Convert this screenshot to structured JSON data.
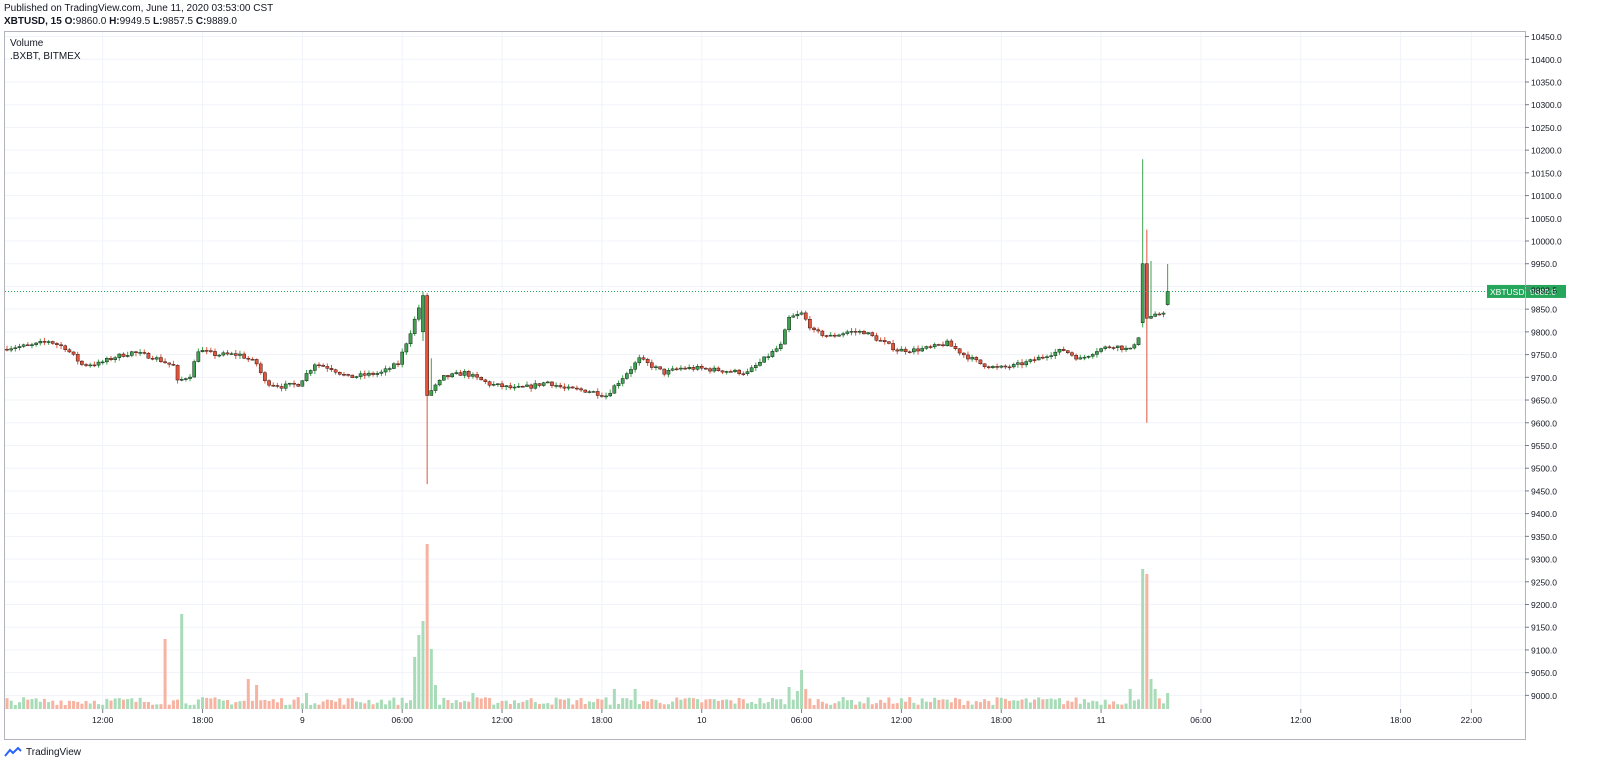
{
  "header": {
    "published": "Published on TradingView.com, June 11, 2020 03:53:00 CST",
    "symbol": "XBTUSD, 15",
    "ohlc": [
      {
        "k": "O:",
        "v": "9860.0"
      },
      {
        "k": "H:",
        "v": "9949.5"
      },
      {
        "k": "L:",
        "v": "9857.5"
      },
      {
        "k": "C:",
        "v": "9889.0"
      }
    ]
  },
  "legend": {
    "line1": "Volume",
    "line2": ".BXBT, BITMEX"
  },
  "footer": {
    "brand": "TradingView"
  },
  "colors": {
    "up": "#26a69a",
    "down": "#ef5350",
    "up_fill": "#3da24f",
    "down_fill": "#e2543b",
    "up_volume": "#a8dbb8",
    "down_volume": "#f6b3a2",
    "price_line": "#26a65b",
    "grid": "#f0f3fa",
    "axis_text": "#131722"
  },
  "chart_data": {
    "type": "candlestick",
    "symbol": "XBTUSD",
    "interval": "15",
    "price_axis": {
      "ylim": [
        8970,
        10460
      ],
      "ticks": [
        9000,
        9050,
        9100,
        9150,
        9200,
        9250,
        9300,
        9350,
        9400,
        9450,
        9500,
        9550,
        9600,
        9650,
        9700,
        9750,
        9800,
        9850,
        9900,
        9950,
        10000,
        10050,
        10100,
        10150,
        10200,
        10250,
        10300,
        10350,
        10400,
        10450
      ],
      "tick_labels": [
        "9000.0",
        "9050.0",
        "9100.0",
        "9150.0",
        "9200.0",
        "9250.0",
        "9300.0",
        "9350.0",
        "9400.0",
        "9450.0",
        "9500.0",
        "9550.0",
        "9600.0",
        "9650.0",
        "9700.0",
        "9750.0",
        "9800.0",
        "9850.0",
        "",
        "9950.0",
        "10000.0",
        "10050.0",
        "10100.0",
        "10150.0",
        "10200.0",
        "10250.0",
        "10300.0",
        "10350.0",
        "10400.0",
        "10450.0"
      ],
      "extra_labels": [
        {
          "value": 9892.5,
          "label": "9892.5"
        }
      ]
    },
    "time_axis": {
      "bars_total": 324,
      "labels": [
        {
          "bar": 23,
          "label": "12:00"
        },
        {
          "bar": 47,
          "label": "18:00"
        },
        {
          "bar": 71,
          "label": "9"
        },
        {
          "bar": 95,
          "label": "06:00"
        },
        {
          "bar": 119,
          "label": "12:00"
        },
        {
          "bar": 143,
          "label": "18:00"
        },
        {
          "bar": 167,
          "label": "10"
        },
        {
          "bar": 191,
          "label": "06:00"
        },
        {
          "bar": 215,
          "label": "12:00"
        },
        {
          "bar": 239,
          "label": "18:00"
        },
        {
          "bar": 263,
          "label": "11"
        },
        {
          "bar": 287,
          "label": "06:00"
        },
        {
          "bar": 311,
          "label": "12:00"
        },
        {
          "bar": 335,
          "label": "18:00"
        },
        {
          "bar": 352,
          "label": "22:00"
        }
      ]
    },
    "last_price": {
      "label": "XBTUSD",
      "value": 9889.0,
      "value_label": "9889.0"
    },
    "keypoints": [
      [
        0,
        9765
      ],
      [
        6,
        9770
      ],
      [
        10,
        9780
      ],
      [
        14,
        9765
      ],
      [
        18,
        9728
      ],
      [
        22,
        9730
      ],
      [
        26,
        9745
      ],
      [
        30,
        9755
      ],
      [
        35,
        9745
      ],
      [
        40,
        9725
      ],
      [
        41,
        9690
      ],
      [
        44,
        9705
      ],
      [
        46,
        9760
      ],
      [
        50,
        9750
      ],
      [
        56,
        9750
      ],
      [
        60,
        9730
      ],
      [
        62,
        9690
      ],
      [
        66,
        9680
      ],
      [
        70,
        9685
      ],
      [
        74,
        9730
      ],
      [
        78,
        9720
      ],
      [
        82,
        9700
      ],
      [
        86,
        9705
      ],
      [
        90,
        9710
      ],
      [
        94,
        9730
      ],
      [
        97,
        9800
      ],
      [
        100,
        9880
      ],
      [
        101,
        9740
      ],
      [
        102,
        9670
      ],
      [
        105,
        9700
      ],
      [
        110,
        9710
      ],
      [
        116,
        9685
      ],
      [
        122,
        9675
      ],
      [
        126,
        9680
      ],
      [
        130,
        9690
      ],
      [
        134,
        9675
      ],
      [
        140,
        9670
      ],
      [
        144,
        9660
      ],
      [
        148,
        9700
      ],
      [
        152,
        9740
      ],
      [
        158,
        9710
      ],
      [
        162,
        9720
      ],
      [
        166,
        9720
      ],
      [
        172,
        9715
      ],
      [
        178,
        9710
      ],
      [
        182,
        9740
      ],
      [
        186,
        9770
      ],
      [
        188,
        9830
      ],
      [
        191,
        9840
      ],
      [
        194,
        9800
      ],
      [
        198,
        9790
      ],
      [
        202,
        9800
      ],
      [
        206,
        9800
      ],
      [
        210,
        9780
      ],
      [
        214,
        9760
      ],
      [
        218,
        9760
      ],
      [
        222,
        9765
      ],
      [
        226,
        9775
      ],
      [
        230,
        9750
      ],
      [
        234,
        9730
      ],
      [
        238,
        9720
      ],
      [
        242,
        9725
      ],
      [
        246,
        9735
      ],
      [
        250,
        9750
      ],
      [
        254,
        9760
      ],
      [
        258,
        9740
      ],
      [
        262,
        9760
      ],
      [
        266,
        9770
      ],
      [
        270,
        9760
      ],
      [
        272,
        9790
      ],
      [
        273,
        9820
      ],
      [
        274,
        9950
      ],
      [
        275,
        9830
      ],
      [
        276,
        9835
      ],
      [
        278,
        9845
      ],
      [
        279,
        9889
      ]
    ],
    "events": [
      {
        "bar": 100,
        "open": 9800,
        "high": 9888,
        "low": 9780,
        "close": 9880
      },
      {
        "bar": 101,
        "open": 9880,
        "high": 9885,
        "low": 9465,
        "close": 9660
      },
      {
        "bar": 273,
        "open": 9820,
        "high": 10180,
        "low": 9810,
        "close": 9950
      },
      {
        "bar": 274,
        "open": 9950,
        "high": 10025,
        "low": 9600,
        "close": 9830
      },
      {
        "bar": 279,
        "open": 9860,
        "high": 9949.5,
        "low": 9857.5,
        "close": 9889
      }
    ],
    "volume": {
      "base": 4,
      "spikes": [
        {
          "bar": 38,
          "value": 70
        },
        {
          "bar": 42,
          "value": 95
        },
        {
          "bar": 58,
          "value": 30
        },
        {
          "bar": 60,
          "value": 24
        },
        {
          "bar": 72,
          "value": 16
        },
        {
          "bar": 98,
          "value": 52
        },
        {
          "bar": 99,
          "value": 74
        },
        {
          "bar": 100,
          "value": 88
        },
        {
          "bar": 101,
          "value": 165
        },
        {
          "bar": 102,
          "value": 60
        },
        {
          "bar": 103,
          "value": 24
        },
        {
          "bar": 112,
          "value": 16
        },
        {
          "bar": 146,
          "value": 20
        },
        {
          "bar": 151,
          "value": 20
        },
        {
          "bar": 188,
          "value": 22
        },
        {
          "bar": 190,
          "value": 18
        },
        {
          "bar": 191,
          "value": 39
        },
        {
          "bar": 192,
          "value": 20
        },
        {
          "bar": 270,
          "value": 20
        },
        {
          "bar": 273,
          "value": 140
        },
        {
          "bar": 274,
          "value": 135
        },
        {
          "bar": 275,
          "value": 30
        },
        {
          "bar": 276,
          "value": 20
        },
        {
          "bar": 279,
          "value": 16
        }
      ]
    }
  }
}
